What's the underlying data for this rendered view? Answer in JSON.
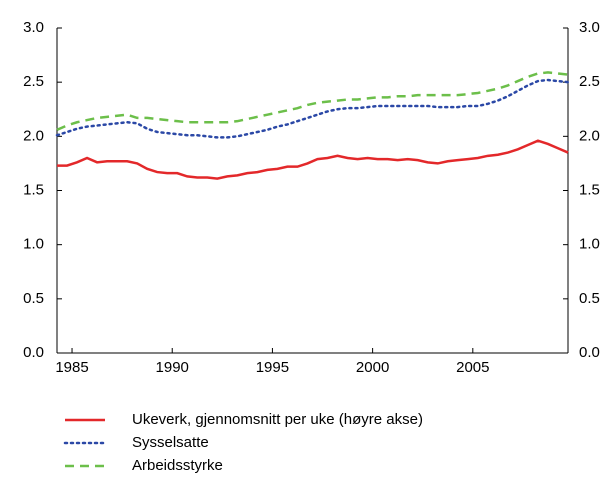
{
  "chart_data": {
    "type": "line",
    "x": [
      1984.25,
      1984.75,
      1985.25,
      1985.75,
      1986.25,
      1986.75,
      1987.25,
      1987.75,
      1988.25,
      1988.75,
      1989.25,
      1989.75,
      1990.25,
      1990.75,
      1991.25,
      1991.75,
      1992.25,
      1992.75,
      1993.25,
      1993.75,
      1994.25,
      1994.75,
      1995.25,
      1995.75,
      1996.25,
      1996.75,
      1997.25,
      1997.75,
      1998.25,
      1998.75,
      1999.25,
      1999.75,
      2000.25,
      2000.75,
      2001.25,
      2001.75,
      2002.25,
      2002.75,
      2003.25,
      2003.75,
      2004.25,
      2004.75,
      2005.25,
      2005.75,
      2006.25,
      2006.75,
      2007.25,
      2007.75,
      2008.25,
      2008.75,
      2009.25,
      2009.75
    ],
    "series": [
      {
        "name": "Ukeverk, gjennomsnitt per uke (høyre akse)",
        "color": "#e3282a",
        "linestyle": "solid",
        "axis": "y2",
        "values": [
          1.73,
          1.73,
          1.76,
          1.8,
          1.76,
          1.77,
          1.77,
          1.77,
          1.75,
          1.7,
          1.67,
          1.66,
          1.66,
          1.63,
          1.62,
          1.62,
          1.61,
          1.63,
          1.64,
          1.66,
          1.67,
          1.69,
          1.7,
          1.72,
          1.72,
          1.75,
          1.79,
          1.8,
          1.82,
          1.8,
          1.79,
          1.8,
          1.79,
          1.79,
          1.78,
          1.79,
          1.78,
          1.76,
          1.75,
          1.77,
          1.78,
          1.79,
          1.8,
          1.82,
          1.83,
          1.85,
          1.88,
          1.92,
          1.96,
          1.93,
          1.89,
          1.85
        ]
      },
      {
        "name": "Sysselsatte",
        "color": "#2b48a6",
        "linestyle": "dotted",
        "values": [
          2.01,
          2.04,
          2.07,
          2.09,
          2.1,
          2.11,
          2.12,
          2.13,
          2.12,
          2.07,
          2.04,
          2.03,
          2.02,
          2.01,
          2.01,
          2.0,
          1.99,
          1.99,
          2.0,
          2.02,
          2.04,
          2.06,
          2.09,
          2.11,
          2.14,
          2.17,
          2.2,
          2.23,
          2.25,
          2.26,
          2.26,
          2.27,
          2.28,
          2.28,
          2.28,
          2.28,
          2.28,
          2.28,
          2.27,
          2.27,
          2.27,
          2.28,
          2.28,
          2.3,
          2.33,
          2.37,
          2.42,
          2.47,
          2.51,
          2.52,
          2.51,
          2.5
        ]
      },
      {
        "name": "Arbeidsstyrke",
        "color": "#6cbf4a",
        "linestyle": "dashed",
        "values": [
          2.06,
          2.1,
          2.13,
          2.15,
          2.17,
          2.18,
          2.19,
          2.2,
          2.17,
          2.17,
          2.16,
          2.15,
          2.14,
          2.13,
          2.13,
          2.13,
          2.13,
          2.13,
          2.14,
          2.16,
          2.18,
          2.2,
          2.22,
          2.24,
          2.26,
          2.29,
          2.31,
          2.32,
          2.33,
          2.34,
          2.34,
          2.35,
          2.36,
          2.36,
          2.37,
          2.37,
          2.38,
          2.38,
          2.38,
          2.38,
          2.38,
          2.39,
          2.4,
          2.42,
          2.44,
          2.47,
          2.51,
          2.55,
          2.58,
          2.59,
          2.58,
          2.57
        ]
      }
    ],
    "xlim": [
      1984.25,
      2009.75
    ],
    "xticks": [
      1985,
      1990,
      1995,
      2000,
      2005
    ],
    "ylim": [
      0,
      3
    ],
    "yticks": [
      {
        "value": 0,
        "label": "0.0"
      },
      0.5,
      {
        "value": 1,
        "label": "1.0"
      },
      1.5,
      {
        "value": 2,
        "label": "2.0"
      },
      2.5,
      {
        "value": 3,
        "label": "3.0"
      }
    ],
    "y2lim": [
      0,
      3
    ],
    "y2ticks": [
      {
        "value": 0,
        "label": "0.0"
      },
      0.5,
      {
        "value": 1,
        "label": "1.0"
      },
      1.5,
      {
        "value": 2,
        "label": "2.0"
      },
      2.5,
      {
        "value": 3,
        "label": "3.0"
      }
    ],
    "grid": false,
    "legend": "bottom"
  }
}
